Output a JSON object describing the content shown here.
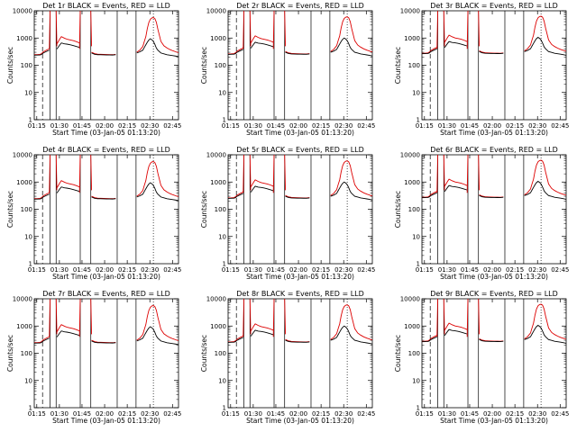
{
  "figure": {
    "background": "#ffffff",
    "events_color": "#000000",
    "lld_color": "#dd0000"
  },
  "chart_data": [
    {
      "type": "line",
      "panel": "Det 1r",
      "title": "Det 1r BLACK = Events, RED = LLD",
      "xlabel": "Start Time (03-Jan-05 01:13:20)",
      "ylabel": "Counts/sec",
      "yscale": "log",
      "ylim": [
        1,
        10000
      ],
      "xlim": [
        "01:13:20",
        "02:49:00"
      ],
      "x_ticks": [
        "01:15",
        "01:30",
        "01:45",
        "02:00",
        "02:15",
        "02:30",
        "02:45"
      ],
      "y_ticks": [
        "1",
        "10",
        "100",
        "1000",
        "10000"
      ],
      "grid": false,
      "legend": "in title",
      "series": [
        {
          "name": "Events",
          "color": "black",
          "values": "see profile"
        },
        {
          "name": "LLD",
          "color": "red",
          "values": "see profile"
        }
      ]
    },
    {
      "type": "line",
      "panel": "Det 2r",
      "title": "Det 2r BLACK = Events, RED = LLD",
      "xlabel": "Start Time (03-Jan-05 01:13:20)",
      "ylabel": "Counts/sec",
      "yscale": "log",
      "ylim": [
        1,
        10000
      ],
      "xlim": [
        "01:13:20",
        "02:49:00"
      ],
      "x_ticks": [
        "01:15",
        "01:30",
        "01:45",
        "02:00",
        "02:15",
        "02:30",
        "02:45"
      ],
      "y_ticks": [
        "1",
        "10",
        "100",
        "1000",
        "10000"
      ],
      "grid": false,
      "legend": "in title"
    },
    {
      "type": "line",
      "panel": "Det 3r",
      "title": "Det 3r BLACK = Events, RED = LLD",
      "xlabel": "Start Time (03-Jan-05 01:13:20)",
      "ylabel": "Counts/sec",
      "yscale": "log",
      "ylim": [
        1,
        10000
      ],
      "xlim": [
        "01:13:20",
        "02:49:00"
      ],
      "x_ticks": [
        "01:15",
        "01:30",
        "01:45",
        "02:00",
        "02:15",
        "02:30",
        "02:45"
      ],
      "y_ticks": [
        "1",
        "10",
        "100",
        "1000",
        "10000"
      ],
      "grid": false,
      "legend": "in title"
    },
    {
      "type": "line",
      "panel": "Det 4r",
      "title": "Det 4r BLACK = Events, RED = LLD",
      "xlabel": "Start Time (03-Jan-05 01:13:20)",
      "ylabel": "Counts/sec",
      "yscale": "log",
      "ylim": [
        1,
        10000
      ],
      "xlim": [
        "01:13:20",
        "02:49:00"
      ],
      "x_ticks": [
        "01:15",
        "01:30",
        "01:45",
        "02:00",
        "02:15",
        "02:30",
        "02:45"
      ],
      "y_ticks": [
        "1",
        "10",
        "100",
        "1000",
        "10000"
      ],
      "grid": false,
      "legend": "in title"
    },
    {
      "type": "line",
      "panel": "Det 5r",
      "title": "Det 5r BLACK = Events, RED = LLD",
      "xlabel": "Start Time (03-Jan-05 01:13:20)",
      "ylabel": "Counts/sec",
      "yscale": "log",
      "ylim": [
        1,
        10000
      ],
      "xlim": [
        "01:13:20",
        "02:49:00"
      ],
      "x_ticks": [
        "01:15",
        "01:30",
        "01:45",
        "02:00",
        "02:15",
        "02:30",
        "02:45"
      ],
      "y_ticks": [
        "1",
        "10",
        "100",
        "1000",
        "10000"
      ],
      "grid": false,
      "legend": "in title"
    },
    {
      "type": "line",
      "panel": "Det 6r",
      "title": "Det 6r BLACK = Events, RED = LLD",
      "xlabel": "Start Time (03-Jan-05 01:13:20)",
      "ylabel": "Counts/sec",
      "yscale": "log",
      "ylim": [
        1,
        10000
      ],
      "xlim": [
        "01:13:20",
        "02:49:00"
      ],
      "x_ticks": [
        "01:15",
        "01:30",
        "01:45",
        "02:00",
        "02:15",
        "02:30",
        "02:45"
      ],
      "y_ticks": [
        "1",
        "10",
        "100",
        "1000",
        "10000"
      ],
      "grid": false,
      "legend": "in title"
    },
    {
      "type": "line",
      "panel": "Det 7r",
      "title": "Det 7r BLACK = Events, RED = LLD",
      "xlabel": "Start Time (03-Jan-05 01:13:20)",
      "ylabel": "Counts/sec",
      "yscale": "log",
      "ylim": [
        1,
        10000
      ],
      "xlim": [
        "01:13:20",
        "02:49:00"
      ],
      "x_ticks": [
        "01:15",
        "01:30",
        "01:45",
        "02:00",
        "02:15",
        "02:30",
        "02:45"
      ],
      "y_ticks": [
        "1",
        "10",
        "100",
        "1000",
        "10000"
      ],
      "grid": false,
      "legend": "in title"
    },
    {
      "type": "line",
      "panel": "Det 8r",
      "title": "Det 8r BLACK = Events, RED = LLD",
      "xlabel": "Start Time (03-Jan-05 01:13:20)",
      "ylabel": "Counts/sec",
      "yscale": "log",
      "ylim": [
        1,
        10000
      ],
      "xlim": [
        "01:13:20",
        "02:49:00"
      ],
      "x_ticks": [
        "01:15",
        "01:30",
        "01:45",
        "02:00",
        "02:15",
        "02:30",
        "02:45"
      ],
      "y_ticks": [
        "1",
        "10",
        "100",
        "1000",
        "10000"
      ],
      "grid": false,
      "legend": "in title"
    },
    {
      "type": "line",
      "panel": "Det 9r",
      "title": "Det 9r BLACK = Events, RED = LLD",
      "xlabel": "Start Time (03-Jan-05 01:13:20)",
      "ylabel": "Counts/sec",
      "yscale": "log",
      "ylim": [
        1,
        10000
      ],
      "xlim": [
        "01:13:20",
        "02:49:00"
      ],
      "x_ticks": [
        "01:15",
        "01:30",
        "01:45",
        "02:00",
        "02:15",
        "02:30",
        "02:45"
      ],
      "y_ticks": [
        "1",
        "10",
        "100",
        "1000",
        "10000"
      ],
      "grid": false,
      "legend": "in title"
    }
  ],
  "time_profile": {
    "x_minutes": [
      0,
      2,
      4,
      5,
      6,
      8,
      10,
      11,
      12,
      13,
      13.5,
      14,
      15,
      16,
      17,
      18,
      20,
      22,
      24,
      26,
      28,
      30,
      31,
      32,
      34,
      36,
      38,
      40,
      42,
      44,
      46,
      48,
      50,
      52,
      54,
      56,
      58,
      60,
      62,
      63,
      64,
      66,
      68,
      70,
      72,
      73,
      74,
      75,
      76,
      77,
      78,
      79,
      80,
      81,
      82,
      84,
      86,
      88,
      90,
      92,
      94,
      95.6
    ],
    "events_values": [
      250,
      252,
      255,
      270,
      300,
      340,
      380,
      0,
      0,
      0,
      0,
      0,
      420,
      500,
      600,
      700,
      650,
      630,
      600,
      560,
      520,
      480,
      0,
      0,
      0,
      0,
      300,
      270,
      260,
      258,
      256,
      255,
      254,
      253,
      260,
      0,
      0,
      0,
      0,
      0,
      0,
      0,
      300,
      330,
      380,
      480,
      600,
      750,
      900,
      1000,
      920,
      800,
      620,
      450,
      380,
      300,
      280,
      260,
      250,
      240,
      230,
      220
    ],
    "lld_values": [
      260,
      262,
      268,
      290,
      330,
      380,
      430,
      0,
      0,
      0,
      0,
      0,
      650,
      800,
      1000,
      1200,
      1050,
      950,
      900,
      850,
      780,
      700,
      0,
      0,
      0,
      0,
      320,
      285,
      272,
      268,
      265,
      263,
      261,
      260,
      268,
      0,
      0,
      0,
      0,
      0,
      0,
      0,
      320,
      380,
      520,
      800,
      1200,
      2400,
      4000,
      5200,
      5800,
      6000,
      5500,
      4000,
      2200,
      800,
      550,
      460,
      400,
      360,
      330,
      310
    ],
    "events_gaps": [
      [
        10.5,
        14.5
      ],
      [
        30.5,
        37.5
      ],
      [
        55,
        67.5
      ]
    ],
    "lld_gaps": [
      [
        10.5,
        14.5
      ],
      [
        30.5,
        37.5
      ],
      [
        55,
        67.5
      ]
    ],
    "black_spike_minutes": [
      10.5,
      14.5,
      30.5,
      37.5,
      55,
      67.5
    ],
    "dashed_marker_minutes": [
      5.5
    ],
    "dotted_marker_minutes": [
      79
    ]
  }
}
